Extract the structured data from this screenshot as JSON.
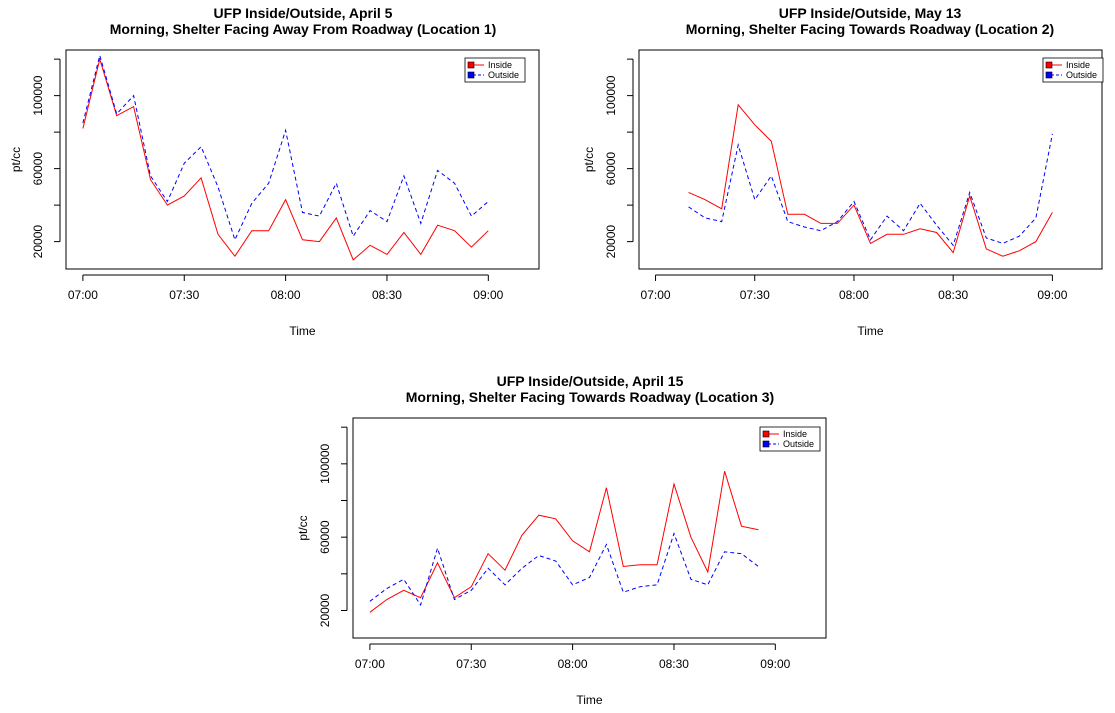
{
  "chart_data": [
    {
      "type": "line",
      "title": "UFP Inside/Outside, April 5",
      "subtitle": "Morning, Shelter Facing Away From Roadway (Location 1)",
      "xlabel": "Time",
      "ylabel": "pt/cc",
      "xlim": [
        "06:55",
        "09:15"
      ],
      "ylim": [
        5000,
        125000
      ],
      "x_ticks": [
        "07:00",
        "07:30",
        "08:00",
        "08:30",
        "09:00"
      ],
      "y_ticks": [
        "20000",
        "60000",
        "100000"
      ],
      "legend": {
        "position": "top-right",
        "entries": [
          "Inside",
          "Outside"
        ]
      },
      "grid": false,
      "x": [
        "07:00",
        "07:05",
        "07:10",
        "07:15",
        "07:20",
        "07:25",
        "07:30",
        "07:35",
        "07:40",
        "07:45",
        "07:50",
        "07:55",
        "08:00",
        "08:05",
        "08:10",
        "08:15",
        "08:20",
        "08:25",
        "08:30",
        "08:35",
        "08:40",
        "08:45",
        "08:50",
        "08:55",
        "09:00"
      ],
      "series": [
        {
          "name": "Inside",
          "color": "#ff0000",
          "linestyle": "solid",
          "values": [
            82000,
            120000,
            89000,
            94000,
            54000,
            40000,
            45000,
            55000,
            24000,
            12000,
            26000,
            26000,
            43000,
            21000,
            20000,
            33000,
            10000,
            18000,
            13000,
            25000,
            13000,
            29000,
            26000,
            17000,
            26000
          ]
        },
        {
          "name": "Outside",
          "color": "#0000ff",
          "linestyle": "dashed",
          "values": [
            85000,
            122000,
            90000,
            100000,
            56000,
            42000,
            63000,
            72000,
            50000,
            21000,
            41000,
            52000,
            81000,
            36000,
            34000,
            52000,
            23000,
            37000,
            31000,
            56000,
            30000,
            59000,
            52000,
            34000,
            42000
          ]
        }
      ]
    },
    {
      "type": "line",
      "title": "UFP Inside/Outside, May 13",
      "subtitle": "Morning, Shelter Facing Towards Roadway (Location 2)",
      "xlabel": "Time",
      "ylabel": "pt/cc",
      "xlim": [
        "06:55",
        "09:15"
      ],
      "ylim": [
        5000,
        125000
      ],
      "x_ticks": [
        "07:00",
        "07:30",
        "08:00",
        "08:30",
        "09:00"
      ],
      "y_ticks": [
        "20000",
        "60000",
        "100000"
      ],
      "legend": {
        "position": "top-right",
        "entries": [
          "Inside",
          "Outside"
        ]
      },
      "grid": false,
      "x": [
        "07:10",
        "07:15",
        "07:20",
        "07:25",
        "07:30",
        "07:35",
        "07:40",
        "07:45",
        "07:50",
        "07:55",
        "08:00",
        "08:05",
        "08:10",
        "08:15",
        "08:20",
        "08:25",
        "08:30",
        "08:35",
        "08:40",
        "08:45",
        "08:50",
        "08:55",
        "09:00"
      ],
      "series": [
        {
          "name": "Inside",
          "color": "#ff0000",
          "linestyle": "solid",
          "values": [
            47000,
            43000,
            38000,
            95000,
            84000,
            75000,
            35000,
            35000,
            30000,
            30000,
            40000,
            19000,
            24000,
            24000,
            27000,
            25000,
            14000,
            45000,
            16000,
            12000,
            15000,
            20000,
            36000
          ]
        },
        {
          "name": "Outside",
          "color": "#0000ff",
          "linestyle": "dashed",
          "values": [
            39000,
            33000,
            31000,
            73000,
            43000,
            56000,
            31000,
            28000,
            26000,
            31000,
            42000,
            21000,
            34000,
            26000,
            41000,
            29000,
            18000,
            47000,
            22000,
            19000,
            23000,
            33000,
            79000
          ]
        }
      ]
    },
    {
      "type": "line",
      "title": "UFP Inside/Outside, April 15",
      "subtitle": "Morning, Shelter Facing Towards Roadway (Location 3)",
      "xlabel": "Time",
      "ylabel": "pt/cc",
      "xlim": [
        "06:55",
        "09:15"
      ],
      "ylim": [
        5000,
        125000
      ],
      "x_ticks": [
        "07:00",
        "07:30",
        "08:00",
        "08:30",
        "09:00"
      ],
      "y_ticks": [
        "20000",
        "60000",
        "100000"
      ],
      "legend": {
        "position": "top-right",
        "entries": [
          "Inside",
          "Outside"
        ]
      },
      "grid": false,
      "x": [
        "07:00",
        "07:05",
        "07:10",
        "07:15",
        "07:20",
        "07:25",
        "07:30",
        "07:35",
        "07:40",
        "07:45",
        "07:50",
        "07:55",
        "08:00",
        "08:05",
        "08:10",
        "08:15",
        "08:20",
        "08:25",
        "08:30",
        "08:35",
        "08:40",
        "08:45",
        "08:50",
        "08:55"
      ],
      "series": [
        {
          "name": "Inside",
          "color": "#ff0000",
          "linestyle": "solid",
          "values": [
            19000,
            26000,
            31000,
            27000,
            46000,
            27000,
            33000,
            51000,
            42000,
            61000,
            72000,
            70000,
            58000,
            52000,
            87000,
            44000,
            45000,
            45000,
            89000,
            60000,
            41000,
            96000,
            66000,
            64000
          ]
        },
        {
          "name": "Outside",
          "color": "#0000ff",
          "linestyle": "dashed",
          "values": [
            25000,
            32000,
            37000,
            23000,
            54000,
            26000,
            31000,
            43000,
            34000,
            43000,
            50000,
            47000,
            34000,
            38000,
            56000,
            30000,
            33000,
            34000,
            62000,
            37000,
            34000,
            52000,
            51000,
            44000
          ]
        }
      ]
    }
  ]
}
